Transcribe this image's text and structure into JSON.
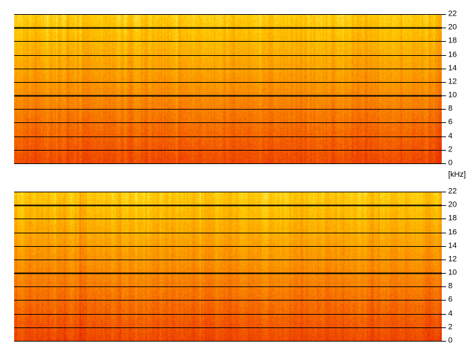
{
  "spectrogram": {
    "unit_label": "[kHz]",
    "colormap": [
      "#e02000",
      "#f04c00",
      "#f87c00",
      "#fca400",
      "#ffcc00",
      "#fff070"
    ],
    "grid_color": "#000000",
    "channels": [
      {
        "id": "top"
      },
      {
        "id": "bottom"
      }
    ]
  },
  "chart_data": [
    {
      "type": "heatmap",
      "yaxis": {
        "min": 0,
        "max": 22,
        "ticks": [
          0,
          2,
          4,
          6,
          8,
          10,
          12,
          14,
          16,
          18,
          20,
          22
        ],
        "tick_labels": [
          "0",
          "2",
          "4",
          "6",
          "8",
          "10",
          "12",
          "14",
          "16",
          "18",
          "20",
          "22"
        ],
        "unit": "[kHz]",
        "gridlines_at": [
          0,
          2,
          4,
          6,
          8,
          10,
          12,
          14,
          16,
          18,
          20,
          22
        ],
        "bold_gridlines_at": [
          10,
          20
        ]
      },
      "xaxis": {
        "ticks": []
      },
      "intensity_trend": "lower frequencies red, higher frequencies yellow"
    },
    {
      "type": "heatmap",
      "yaxis": {
        "min": 0,
        "max": 22,
        "ticks": [
          0,
          2,
          4,
          6,
          8,
          10,
          12,
          14,
          16,
          18,
          20,
          22
        ],
        "tick_labels": [
          "0",
          "2",
          "4",
          "6",
          "8",
          "10",
          "12",
          "14",
          "16",
          "18",
          "20",
          "22"
        ],
        "unit": "[kHz]",
        "gridlines_at": [
          0,
          2,
          4,
          6,
          8,
          10,
          12,
          14,
          16,
          18,
          20,
          22
        ],
        "bold_gridlines_at": [
          10,
          20
        ]
      },
      "xaxis": {
        "ticks": []
      },
      "intensity_trend": "lower frequencies red, higher frequencies yellow"
    }
  ]
}
